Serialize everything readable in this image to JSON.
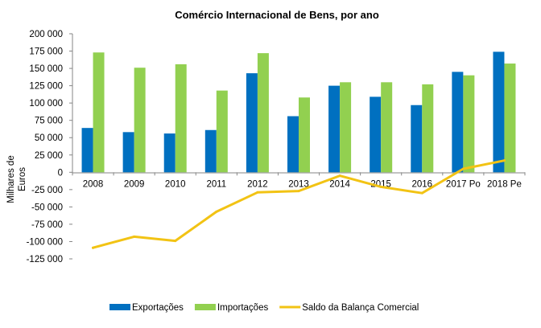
{
  "chart_data": {
    "type": "bar",
    "title": "Comércio Internacional de Bens, por ano",
    "xlabel": "",
    "ylabel": "Milhares de Euros",
    "categories": [
      "2008",
      "2009",
      "2010",
      "2011",
      "2012",
      "2013",
      "2014",
      "2015",
      "2016",
      "2017 Po",
      "2018 Pe"
    ],
    "ylim": [
      -125000,
      200000
    ],
    "yticks": [
      200000,
      175000,
      150000,
      125000,
      100000,
      75000,
      50000,
      25000,
      0,
      -25000,
      -50000,
      -75000,
      -100000,
      -125000
    ],
    "ytick_labels": [
      "200 000",
      "175 000",
      "150 000",
      "125 000",
      "100 000",
      "75 000",
      "50 000",
      "25 000",
      "0",
      "-25 000",
      "-50 000",
      "-75 000",
      "-100 000",
      "-125 000"
    ],
    "series": [
      {
        "name": "Exportações",
        "type": "bar",
        "color": "#0070C0",
        "values": [
          64000,
          58000,
          56000,
          61000,
          143000,
          81000,
          125000,
          109000,
          97000,
          145000,
          174000
        ]
      },
      {
        "name": "Importações",
        "type": "bar",
        "color": "#92D050",
        "values": [
          173000,
          151000,
          156000,
          118000,
          172000,
          108000,
          130000,
          130000,
          127000,
          140000,
          157000
        ]
      },
      {
        "name": "Saldo da Balança Comercial",
        "type": "line",
        "color": "#F2C314",
        "values": [
          -109000,
          -93000,
          -99000,
          -57000,
          -29000,
          -27000,
          -5000,
          -21000,
          -30000,
          5000,
          17000
        ]
      }
    ],
    "grid": false,
    "legend": "bottom"
  }
}
